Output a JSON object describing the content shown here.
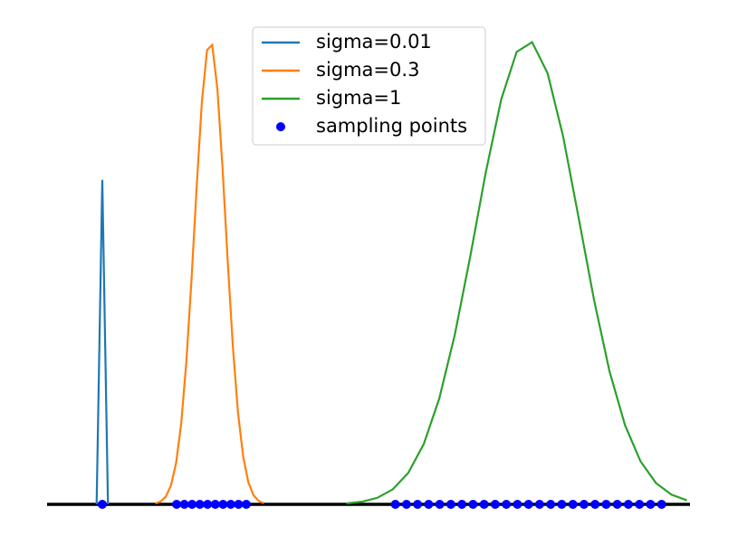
{
  "chart_data": {
    "type": "line",
    "legend": "upper center",
    "xlim": [
      0,
      12.46
    ],
    "ylim": [
      -0.05,
      1.05
    ],
    "series": [
      {
        "name": "sigma=0.01",
        "color": "#1f77b4",
        "x": [
          0.96,
          1.07,
          1.18
        ],
        "values": [
          0,
          0.7,
          0
        ]
      },
      {
        "name": "sigma=0.3",
        "color": "#ff7f0e",
        "x": [
          2.1,
          2.2,
          2.3,
          2.4,
          2.5,
          2.6,
          2.7,
          2.8,
          2.9,
          3.0,
          3.1,
          3.2,
          3.3,
          3.4,
          3.5,
          3.6,
          3.7,
          3.8,
          3.9,
          4.0,
          4.1,
          4.2
        ],
        "values": [
          0.0019,
          0.006,
          0.0164,
          0.0404,
          0.089,
          0.175,
          0.309,
          0.487,
          0.687,
          0.868,
          0.98,
          0.991,
          0.897,
          0.726,
          0.526,
          0.341,
          0.198,
          0.103,
          0.048,
          0.0198,
          0.0074,
          0.0025
        ]
      },
      {
        "name": "sigma=1",
        "color": "#2ca02c",
        "x": [
          5.8,
          6.1,
          6.4,
          6.7,
          7.0,
          7.3,
          7.6,
          7.9,
          8.2,
          8.5,
          8.8,
          9.1,
          9.4,
          9.7,
          10.0,
          10.3,
          10.6,
          10.9,
          11.2,
          11.5,
          11.8,
          12.1,
          12.4
        ],
        "values": [
          0.002,
          0.0056,
          0.0141,
          0.0324,
          0.0679,
          0.13,
          0.228,
          0.365,
          0.534,
          0.715,
          0.873,
          0.976,
          0.997,
          0.93,
          0.794,
          0.619,
          0.441,
          0.287,
          0.171,
          0.093,
          0.046,
          0.021,
          0.0087
        ]
      },
      {
        "name": "sampling points",
        "type": "scatter",
        "color": "#0000ff",
        "x": [
          1.07,
          2.51,
          2.66,
          2.81,
          2.96,
          3.11,
          3.26,
          3.41,
          3.56,
          3.71,
          3.86,
          6.75,
          6.965,
          7.18,
          7.395,
          7.61,
          7.825,
          8.04,
          8.255,
          8.47,
          8.685,
          8.9,
          9.115,
          9.33,
          9.545,
          9.76,
          9.975,
          10.19,
          10.405,
          10.62,
          10.835,
          11.05,
          11.265,
          11.48,
          11.695,
          11.91
        ],
        "values": [
          0,
          0,
          0,
          0,
          0,
          0,
          0,
          0,
          0,
          0,
          0,
          0,
          0,
          0,
          0,
          0,
          0,
          0,
          0,
          0,
          0,
          0,
          0,
          0,
          0,
          0,
          0,
          0,
          0,
          0,
          0,
          0,
          0,
          0,
          0,
          0
        ]
      }
    ]
  }
}
